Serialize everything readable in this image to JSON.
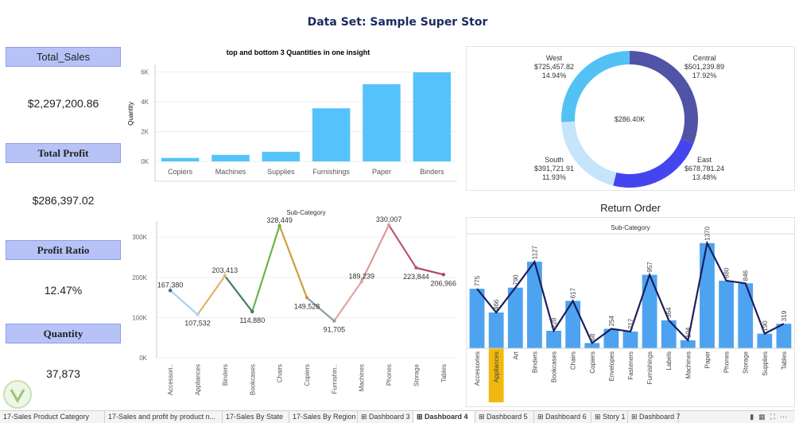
{
  "title": "Data Set: Sample Super Stor",
  "kpis": [
    {
      "label": "Total_Sales",
      "value": "$2,297,200.86"
    },
    {
      "label": "Total Profit",
      "value": "$286,397.02"
    },
    {
      "label": "Profit Ratio",
      "value": "12.47%"
    },
    {
      "label": "Quantity",
      "value": "37,873"
    }
  ],
  "colors": {
    "bar": "#55c3fb",
    "return_bar": "#4da3f0",
    "line": "#1c1f5e",
    "highlight": "#f3b80f",
    "kpi": "#b7c3f7"
  },
  "chart_data": [
    {
      "type": "bar",
      "title": "top and bottom 3 Quantities in one insight",
      "ylabel": "Quantity",
      "yticks": [
        "0K",
        "2K",
        "4K",
        "6K"
      ],
      "ylim": [
        0,
        6400
      ],
      "categories": [
        "Copiers",
        "Machines",
        "Supplies",
        "Furnishings",
        "Paper",
        "Binders"
      ],
      "values": [
        234,
        440,
        647,
        3563,
        5178,
        5974
      ]
    },
    {
      "type": "pie",
      "center_label": "$286.40K",
      "slices": [
        {
          "name": "Central",
          "amount": "$501,239.89",
          "percent": "17.92%",
          "value": 17.92,
          "color": "#5153a6"
        },
        {
          "name": "East",
          "amount": "$678,781.24",
          "percent": "13.48%",
          "value": 13.48,
          "color": "#4545ef"
        },
        {
          "name": "South",
          "amount": "$391,721.91",
          "percent": "11.93%",
          "value": 11.93,
          "color": "#c6e4fa"
        },
        {
          "name": "West",
          "amount": "$725,457.82",
          "percent": "14.94%",
          "value": 14.94,
          "color": "#52c2f5"
        }
      ]
    },
    {
      "type": "line",
      "title": "Sub-Category",
      "yticks": [
        "0K",
        "100K",
        "200K",
        "300K"
      ],
      "ylim": [
        0,
        340000
      ],
      "categories": [
        "Accessori..",
        "Appliances",
        "Binders",
        "Bookcases",
        "Chairs",
        "Copiers",
        "Furnishin..",
        "Machines",
        "Phones",
        "Storage",
        "Tables"
      ],
      "values": [
        167380,
        107532,
        203413,
        114880,
        328449,
        149528,
        91705,
        189239,
        330007,
        223844,
        206966
      ],
      "labels": [
        "167,380",
        "107,532",
        "203,413",
        "114,880",
        "328,449",
        "149,528",
        "91,705",
        "189,239",
        "330,007",
        "223,844",
        "206,966"
      ],
      "colors": [
        "#3a5fa8",
        "#a9d4ef",
        "#e0b26b",
        "#3f7f5a",
        "#6cb34a",
        "#c9a03d",
        "#8aa0a8",
        "#e8a2a2",
        "#d99a9a",
        "#b65a74",
        "#a8466a"
      ]
    },
    {
      "type": "bar",
      "title": "Return Order",
      "subtitle": "Sub-Category",
      "categories": [
        "Accessories",
        "Appliances",
        "Art",
        "Binders",
        "Bookcases",
        "Chairs",
        "Copiers",
        "Envelopes",
        "Fasteners",
        "Furnishings",
        "Labels",
        "Machines",
        "Paper",
        "Phones",
        "Storage",
        "Supplies",
        "Tables"
      ],
      "values": [
        775,
        466,
        790,
        1127,
        228,
        617,
        68,
        254,
        217,
        957,
        364,
        104,
        1370,
        880,
        846,
        190,
        319
      ],
      "line_values": [
        775,
        466,
        790,
        1127,
        228,
        617,
        68,
        254,
        217,
        957,
        364,
        104,
        1370,
        880,
        846,
        190,
        319
      ],
      "labels": [
        "775",
        "466",
        "790",
        "1127",
        "228",
        "617",
        "68",
        "254",
        "217",
        "957",
        "364",
        "104",
        "1370",
        "880",
        "846",
        "190",
        "319"
      ],
      "highlight": "Appliances",
      "ylim": [
        0,
        1450
      ]
    }
  ],
  "tabs": [
    "17-Sales Product Category",
    "17-Sales and profit by product n...",
    "17-Sales By State",
    "17-Sales By Region",
    "Dashboard 3",
    "Dashboard 4",
    "Dashboard 5",
    "Dashboard 6",
    "Story 1",
    "Dashboard 7"
  ],
  "active_tab": "Dashboard 4"
}
